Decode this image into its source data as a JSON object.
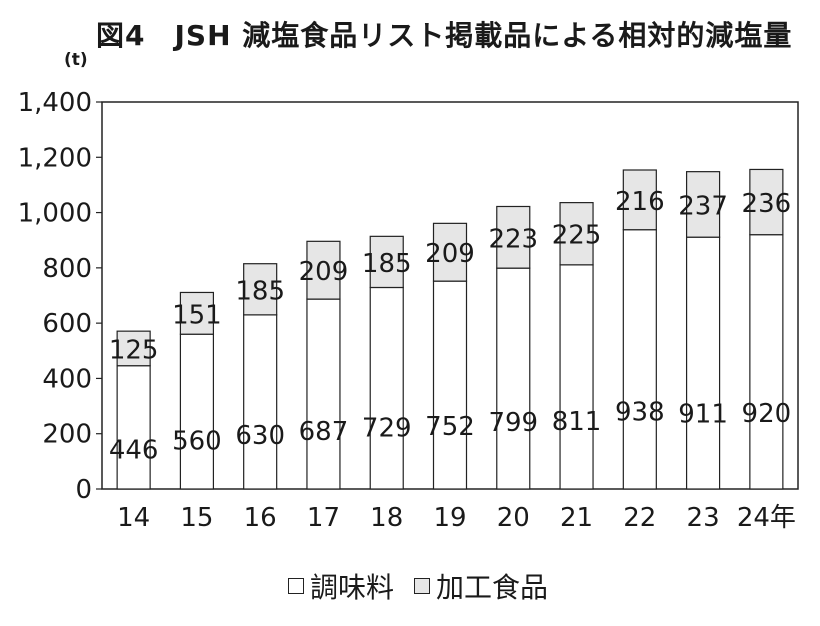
{
  "title": "図4　JSH 減塩食品リスト掲載品による相対的減塩量",
  "unit_label": "(t)",
  "colors": {
    "seasoning": "#ffffff",
    "processed": "#e6e6e6",
    "stroke": "#222222"
  },
  "chart_data": {
    "type": "bar",
    "stacked": true,
    "title": "図4　JSH 減塩食品リスト掲載品による相対的減塩量",
    "ylabel": "(t)",
    "xlabel": "",
    "x_suffix": "年",
    "categories": [
      "14",
      "15",
      "16",
      "17",
      "18",
      "19",
      "20",
      "21",
      "22",
      "23",
      "24年"
    ],
    "series": [
      {
        "name": "調味料",
        "values": [
          446,
          560,
          630,
          687,
          729,
          752,
          799,
          811,
          938,
          911,
          920
        ]
      },
      {
        "name": "加工食品",
        "values": [
          125,
          151,
          185,
          209,
          185,
          209,
          223,
          225,
          216,
          237,
          236
        ]
      }
    ],
    "ylim": [
      0,
      1400
    ],
    "yticks": [
      "0",
      "200",
      "400",
      "600",
      "800",
      "1,000",
      "1,200",
      "1,400"
    ],
    "grid": false,
    "legend": "bottom"
  }
}
